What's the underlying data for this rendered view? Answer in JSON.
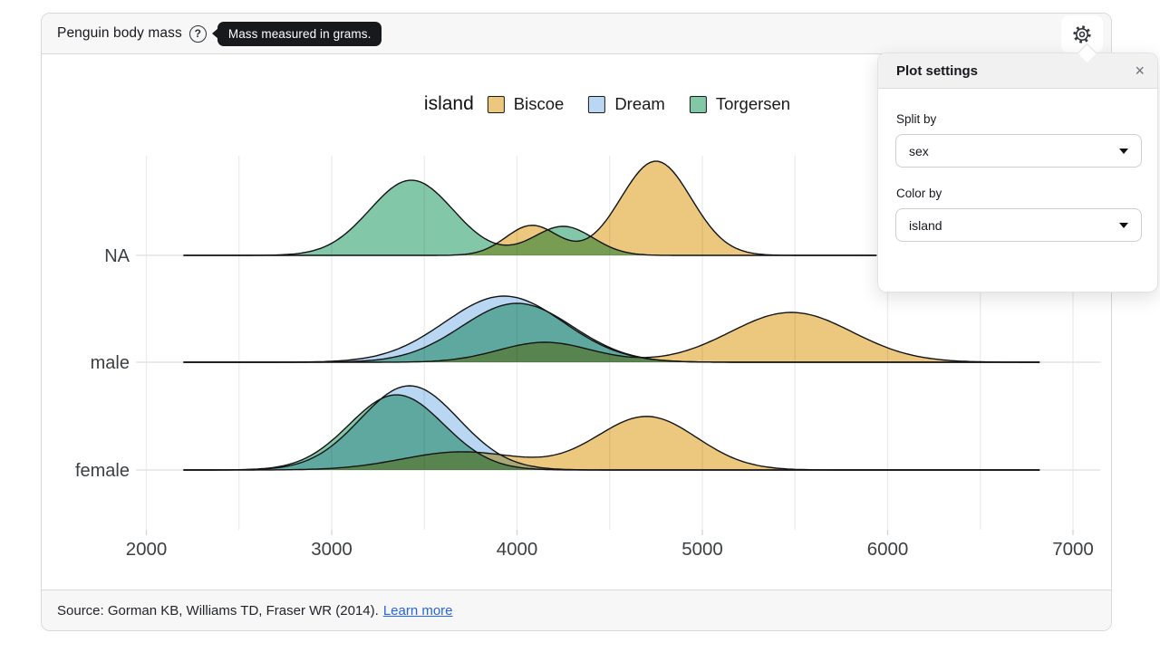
{
  "header": {
    "title": "Penguin body mass",
    "help_glyph": "?",
    "help_tooltip": "Mass measured in grams."
  },
  "settings_panel": {
    "title": "Plot settings",
    "close_glyph": "×",
    "fields": [
      {
        "label": "Split by",
        "value": "sex"
      },
      {
        "label": "Color by",
        "value": "island"
      }
    ]
  },
  "footer": {
    "source_text": "Source: Gorman KB, Williams TD, Fraser WR (2014).",
    "link_label": "Learn more"
  },
  "colors": {
    "biscoe": "#ebc87d",
    "dream": "#b9d7f2",
    "torgersen": "#83c7a9",
    "curve_stroke": "#131313",
    "gridline": "#ececec",
    "row_line": "#e4e4e4",
    "axis_text": "#3d4043"
  },
  "chart_data": {
    "type": "area",
    "subtype": "ridgeline-density",
    "title": "Penguin body mass",
    "xlabel": "",
    "ylabel": "",
    "x_axis": {
      "ticks": [
        2000,
        3000,
        4000,
        5000,
        6000,
        7000
      ],
      "gridline_step": 500,
      "range": [
        1950,
        7100
      ]
    },
    "y_categories": [
      "NA",
      "male",
      "female"
    ],
    "legend": {
      "title": "island",
      "position": "top-center",
      "entries": [
        {
          "label": "Biscoe",
          "color": "#ebc87d"
        },
        {
          "label": "Dream",
          "color": "#b9d7f2"
        },
        {
          "label": "Torgersen",
          "color": "#83c7a9"
        }
      ]
    },
    "note": "Each row is a kernel-density curve of body mass (grams) per sex group, one curve per island; peaks listed as mean grams / sd grams / peak height in px above baseline.",
    "rows": [
      {
        "label": "NA",
        "extent": [
          2200,
          5950
        ],
        "series": [
          {
            "island": "Torgersen",
            "peaks": [
              {
                "mean": 3430,
                "sd": 225,
                "height": 83
              },
              {
                "mean": 4250,
                "sd": 160,
                "height": 32
              }
            ]
          },
          {
            "island": "Biscoe",
            "peaks": [
              {
                "mean": 4080,
                "sd": 140,
                "height": 33
              },
              {
                "mean": 4750,
                "sd": 190,
                "height": 104
              }
            ]
          }
        ]
      },
      {
        "label": "male",
        "extent": [
          2200,
          6820
        ],
        "series": [
          {
            "island": "Biscoe",
            "peaks": [
              {
                "mean": 4150,
                "sd": 250,
                "height": 22
              },
              {
                "mean": 5480,
                "sd": 330,
                "height": 55
              }
            ]
          },
          {
            "island": "Torgersen",
            "peaks": [
              {
                "mean": 4000,
                "sd": 300,
                "height": 65
              }
            ]
          },
          {
            "island": "Dream",
            "peaks": [
              {
                "mean": 3930,
                "sd": 320,
                "height": 73
              }
            ]
          }
        ]
      },
      {
        "label": "female",
        "extent": [
          2200,
          6820
        ],
        "series": [
          {
            "island": "Biscoe",
            "peaks": [
              {
                "mean": 3700,
                "sd": 320,
                "height": 20
              },
              {
                "mean": 4700,
                "sd": 270,
                "height": 59
              }
            ]
          },
          {
            "island": "Torgersen",
            "peaks": [
              {
                "mean": 3350,
                "sd": 255,
                "height": 83
              }
            ]
          },
          {
            "island": "Dream",
            "peaks": [
              {
                "mean": 3420,
                "sd": 265,
                "height": 93
              }
            ]
          }
        ]
      }
    ]
  }
}
